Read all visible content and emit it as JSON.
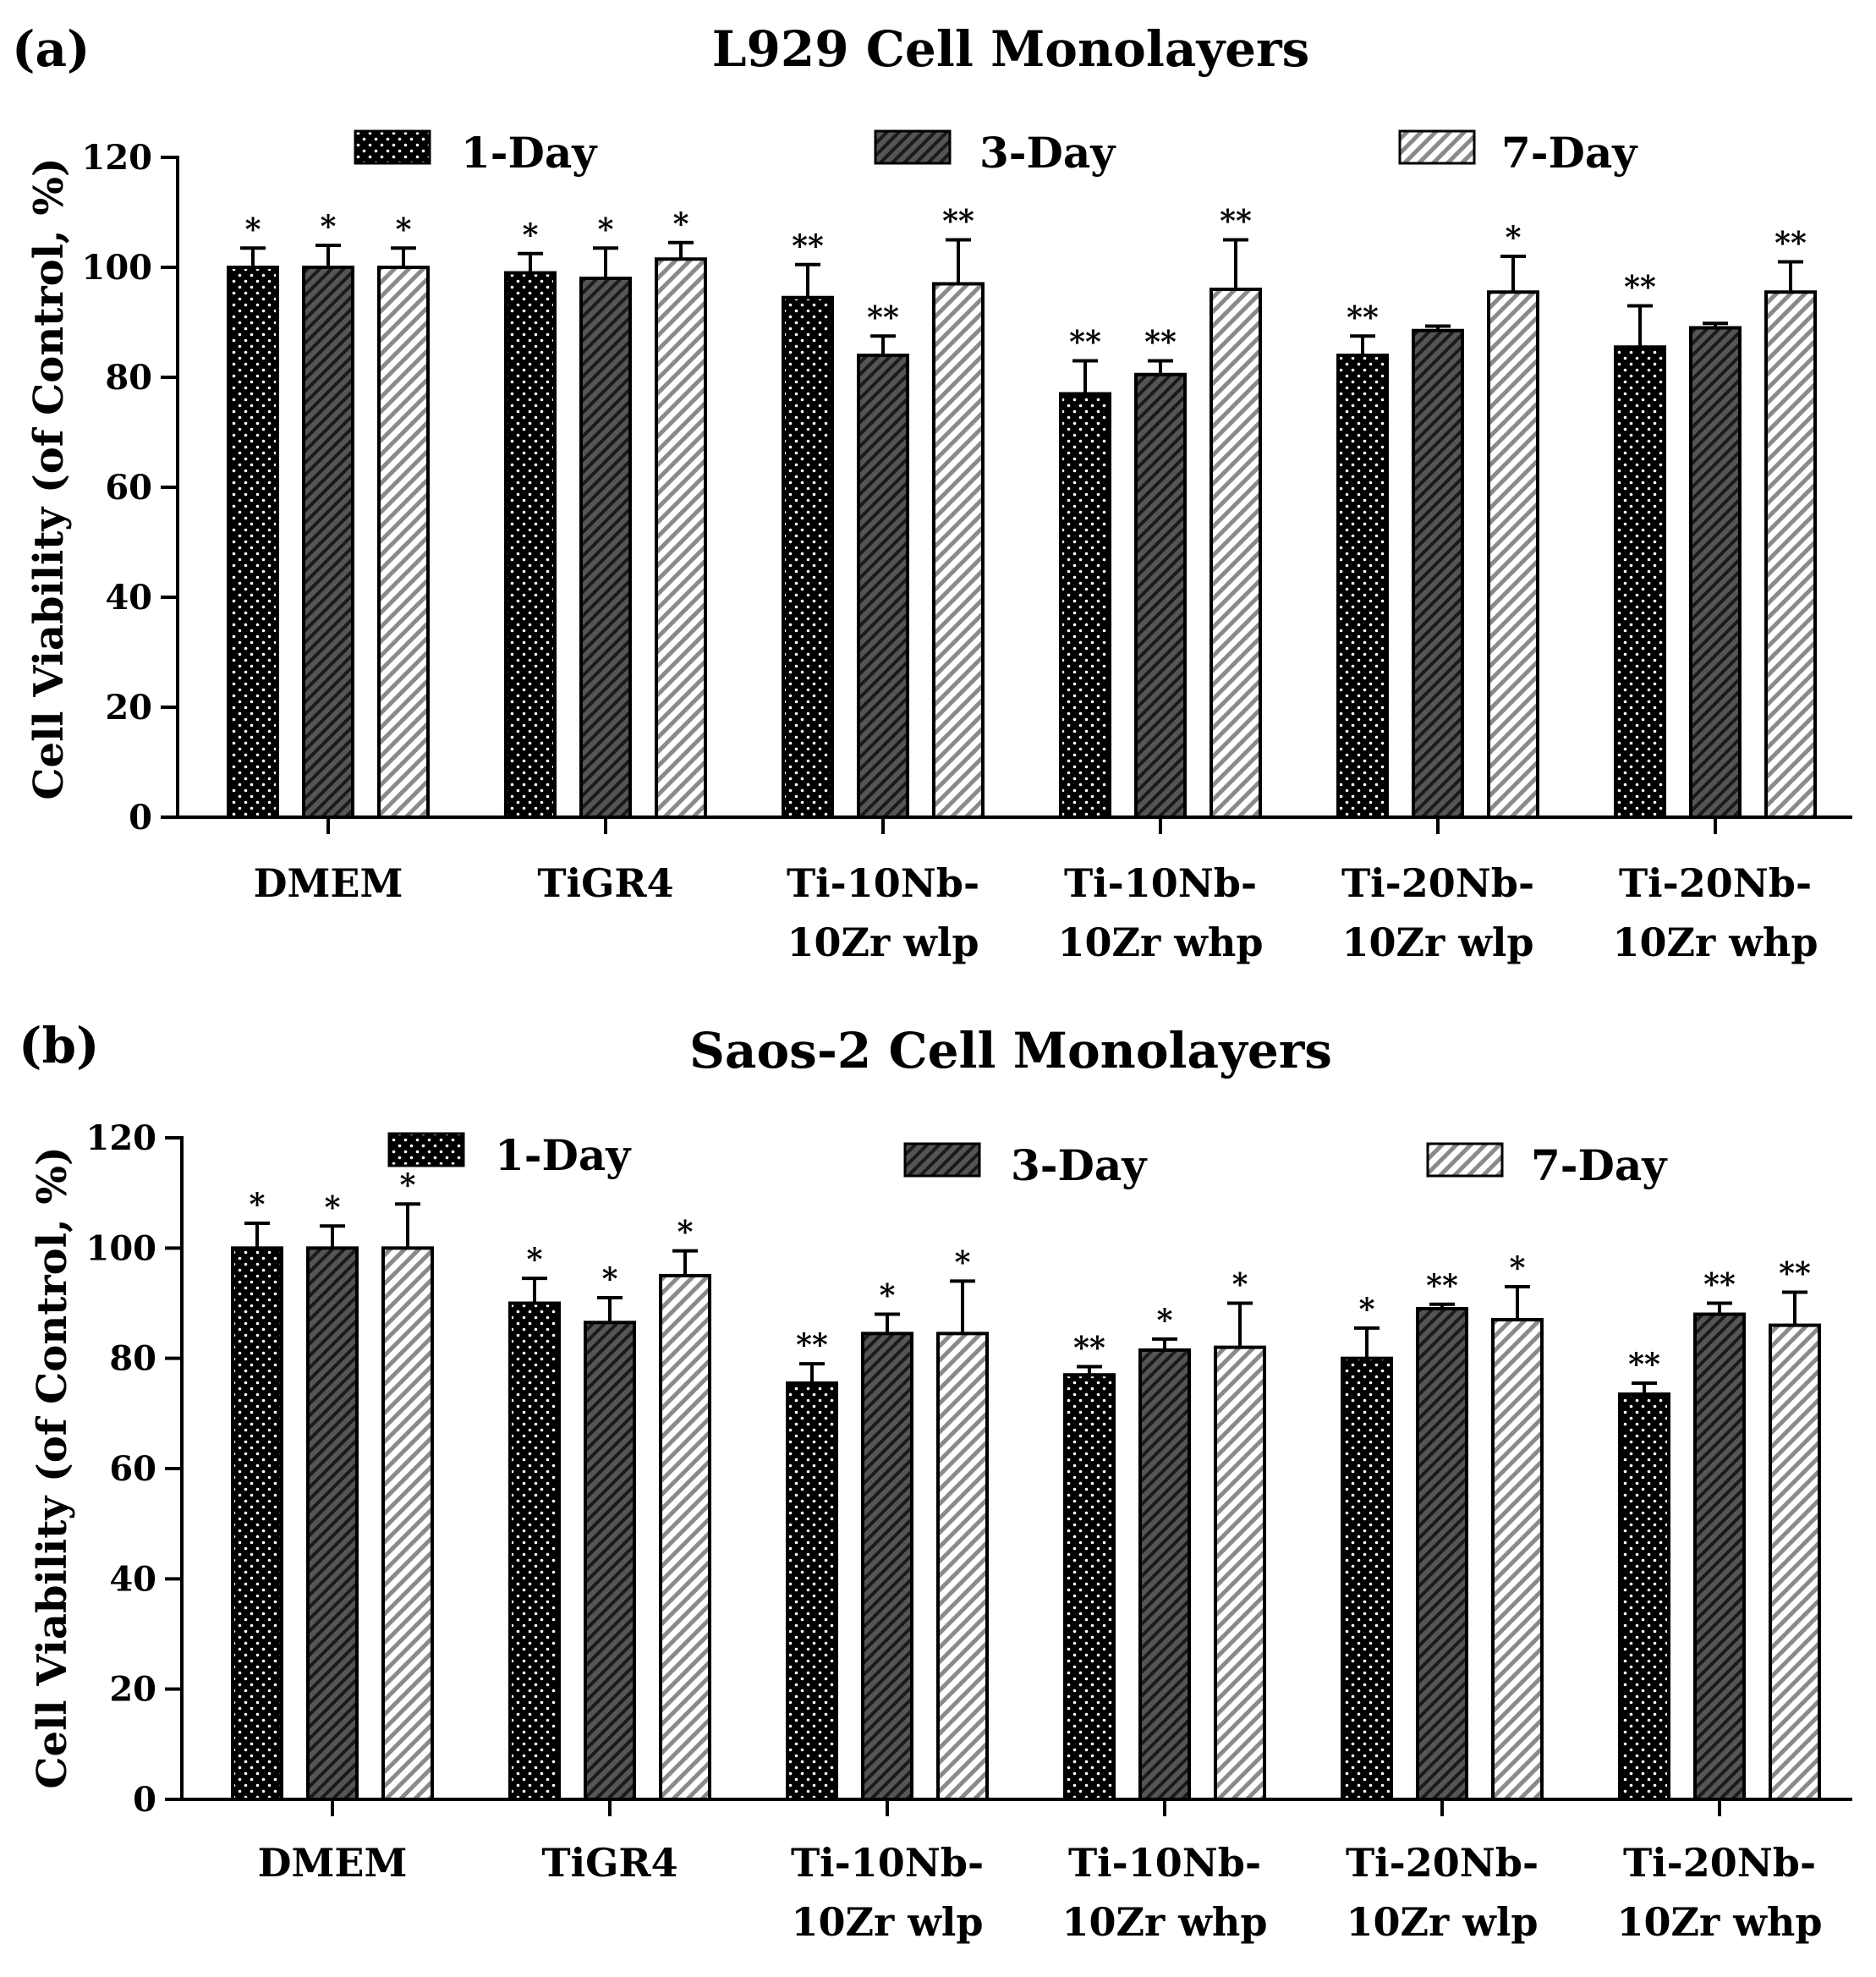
{
  "chart_data": [
    {
      "type": "bar",
      "panel_letter": "(a)",
      "title": "L929 Cell Monolayers",
      "ylabel": "Cell Viability (of Control, %)",
      "xlabel": "",
      "ylim": [
        0,
        120
      ],
      "yticks": [
        0,
        20,
        40,
        60,
        80,
        100,
        120
      ],
      "categories": [
        [
          "DMEM"
        ],
        [
          "TiGR4"
        ],
        [
          "Ti-10Nb-",
          "10Zr wlp"
        ],
        [
          "Ti-10Nb-",
          "10Zr whp"
        ],
        [
          "Ti-20Nb-",
          "10Zr wlp"
        ],
        [
          "Ti-20Nb-",
          "10Zr whp"
        ]
      ],
      "legend_position": "top",
      "series": [
        {
          "name": "1-Day",
          "pattern": "dots",
          "values": [
            100,
            99,
            94.5,
            77,
            84,
            85.5
          ],
          "errors": [
            3.5,
            3.5,
            6,
            6,
            3.5,
            7.5
          ],
          "significance": [
            "*",
            "*",
            "**",
            "**",
            "**",
            "**"
          ]
        },
        {
          "name": "3-Day",
          "pattern": "dense-hatch",
          "values": [
            100,
            98,
            84,
            80.5,
            88.5,
            89
          ],
          "errors": [
            4,
            5.5,
            3.5,
            2.5,
            0.8,
            0.8
          ],
          "significance": [
            "*",
            "*",
            "**",
            "**",
            "",
            ""
          ]
        },
        {
          "name": "7-Day",
          "pattern": "light-hatch",
          "values": [
            100,
            101.5,
            97,
            96,
            95.5,
            95.5
          ],
          "errors": [
            3.5,
            3,
            8,
            9,
            6.5,
            5.5
          ],
          "significance": [
            "*",
            "*",
            "**",
            "**",
            "*",
            "**"
          ]
        }
      ]
    },
    {
      "type": "bar",
      "panel_letter": "(b)",
      "title": "Saos-2 Cell Monolayers",
      "ylabel": "Cell Viability (of Control, %)",
      "xlabel": "",
      "ylim": [
        0,
        120
      ],
      "yticks": [
        0,
        20,
        40,
        60,
        80,
        100,
        120
      ],
      "categories": [
        [
          "DMEM"
        ],
        [
          "TiGR4"
        ],
        [
          "Ti-10Nb-",
          "10Zr wlp"
        ],
        [
          "Ti-10Nb-",
          "10Zr whp"
        ],
        [
          "Ti-20Nb-",
          "10Zr wlp"
        ],
        [
          "Ti-20Nb-",
          "10Zr whp"
        ]
      ],
      "legend_position": "top",
      "series": [
        {
          "name": "1-Day",
          "pattern": "dots",
          "values": [
            100,
            90,
            75.5,
            77,
            80,
            73.5
          ],
          "errors": [
            4.5,
            4.5,
            3.5,
            1.5,
            5.5,
            2
          ],
          "significance": [
            "*",
            "*",
            "**",
            "**",
            "*",
            "**"
          ]
        },
        {
          "name": "3-Day",
          "pattern": "dense-hatch",
          "values": [
            100,
            86.5,
            84.5,
            81.5,
            89,
            88
          ],
          "errors": [
            4,
            4.5,
            3.5,
            2,
            0.8,
            2
          ],
          "significance": [
            "*",
            "*",
            "*",
            "*",
            "**",
            "**"
          ]
        },
        {
          "name": "7-Day",
          "pattern": "light-hatch",
          "values": [
            100,
            95,
            84.5,
            82,
            87,
            86
          ],
          "errors": [
            8,
            4.5,
            9.5,
            8,
            6,
            6
          ],
          "significance": [
            "*",
            "*",
            "*",
            "*",
            "*",
            "**"
          ]
        }
      ]
    }
  ]
}
